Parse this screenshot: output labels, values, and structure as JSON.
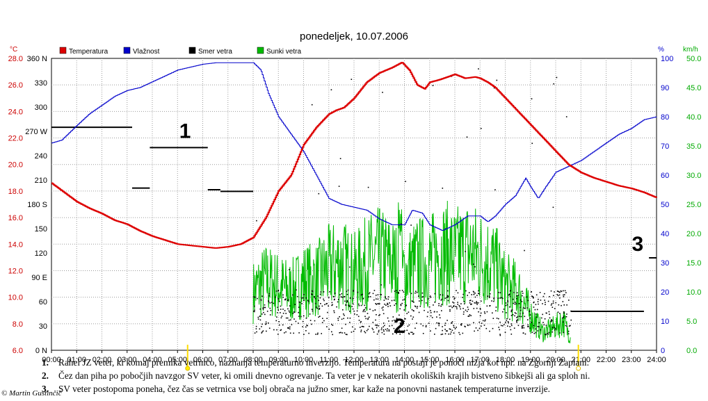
{
  "chart_data": {
    "type": "line",
    "title": "ponedeljek, 10.07.2006",
    "axes": {
      "temperature": {
        "unit": "°C",
        "min": 6,
        "max": 28,
        "ticks": [
          "6.0",
          "8.0",
          "10.0",
          "12.0",
          "14.0",
          "16.0",
          "18.0",
          "20.0",
          "22.0",
          "24.0",
          "26.0",
          "28.0"
        ]
      },
      "direction": {
        "min": 0,
        "max": 360,
        "ticks": [
          "0 N",
          "30",
          "60",
          "90 E",
          "120",
          "150",
          "180 S",
          "210",
          "240",
          "270 W",
          "300",
          "330",
          "360 N"
        ]
      },
      "humidity": {
        "unit": "%",
        "min": 0,
        "max": 100,
        "ticks": [
          "0",
          "10",
          "20",
          "30",
          "40",
          "50",
          "60",
          "70",
          "80",
          "90",
          "100"
        ]
      },
      "wind": {
        "unit": "km/h",
        "min": 0,
        "max": 50,
        "ticks": [
          "0.0",
          "5.0",
          "10.0",
          "15.0",
          "20.0",
          "25.0",
          "30.0",
          "35.0",
          "40.0",
          "45.0",
          "50.0"
        ]
      }
    },
    "x_ticks": [
      "00:00",
      "01:00",
      "02:00",
      "03:00",
      "04:00",
      "05:00",
      "06:00",
      "07:00",
      "08:00",
      "09:00",
      "10:00",
      "11:00",
      "12:00",
      "13:00",
      "14:00",
      "15:00",
      "16:00",
      "17:00",
      "18:00",
      "19:00",
      "20:00",
      "21:00",
      "22:00",
      "23:00",
      "24:00"
    ],
    "sunrise_hours": 5.4,
    "sunset_hours": 20.9,
    "legend": [
      {
        "key": "temperature",
        "label": "Temperatura",
        "color": "#dd0000"
      },
      {
        "key": "humidity",
        "label": "Vlažnost",
        "color": "#0000cc"
      },
      {
        "key": "direction",
        "label": "Smer vetra",
        "color": "#000000"
      },
      {
        "key": "gusts",
        "label": "Sunki vetra",
        "color": "#00bb00"
      }
    ],
    "series": [
      {
        "name": "Temperatura",
        "axis": "temperature",
        "x": [
          0,
          0.5,
          1,
          1.5,
          2,
          2.5,
          3,
          3.5,
          4,
          4.5,
          5,
          5.5,
          6,
          6.5,
          7,
          7.5,
          8,
          8.5,
          9,
          9.5,
          10,
          10.5,
          11,
          11.3,
          11.6,
          12,
          12.5,
          13,
          13.5,
          13.9,
          14.2,
          14.5,
          14.8,
          15,
          15.4,
          15.7,
          16,
          16.4,
          16.8,
          17,
          17.3,
          17.6,
          18,
          18.5,
          19,
          19.5,
          20,
          20.5,
          21,
          21.5,
          22,
          22.5,
          23,
          23.5,
          24
        ],
        "values": [
          18.6,
          17.9,
          17.2,
          16.7,
          16.3,
          15.8,
          15.5,
          15.0,
          14.6,
          14.3,
          14.0,
          13.9,
          13.8,
          13.7,
          13.8,
          14.0,
          14.5,
          16.0,
          18.0,
          19.2,
          21.5,
          22.8,
          23.8,
          24.1,
          24.3,
          25.0,
          26.2,
          26.9,
          27.3,
          27.7,
          27.1,
          26.0,
          25.7,
          26.2,
          26.4,
          26.6,
          26.8,
          26.5,
          26.6,
          26.5,
          26.2,
          25.8,
          25.0,
          24.0,
          23.0,
          22.0,
          21.0,
          20.0,
          19.4,
          19.0,
          18.7,
          18.4,
          18.2,
          17.9,
          17.5
        ]
      },
      {
        "name": "Vlažnost",
        "axis": "humidity",
        "x": [
          0,
          0.4,
          1,
          1.5,
          2,
          2.5,
          3,
          3.5,
          4,
          4.5,
          5,
          5.5,
          6,
          6.5,
          7,
          7.5,
          8,
          8.3,
          8.6,
          9,
          9.5,
          10,
          10.5,
          11,
          11.5,
          12,
          12.5,
          13,
          13.5,
          14,
          14.3,
          14.7,
          15,
          15.5,
          16,
          16.5,
          17,
          17.3,
          17.6,
          18,
          18.4,
          18.8,
          19,
          19.3,
          19.6,
          20,
          20.5,
          21,
          21.5,
          22,
          22.5,
          23,
          23.5,
          24
        ],
        "values": [
          71,
          72,
          77,
          81,
          84,
          87,
          89,
          90,
          92,
          94,
          96,
          97,
          98,
          98.5,
          98.5,
          98.5,
          98.5,
          96,
          88,
          80,
          74,
          68,
          60,
          52,
          50,
          49,
          48,
          45,
          43,
          43,
          48,
          47,
          43,
          41,
          43,
          46,
          46,
          44,
          46,
          50,
          53,
          59,
          56,
          52,
          56,
          61,
          63,
          65,
          68,
          71,
          74,
          76,
          79,
          80
        ]
      },
      {
        "name": "Smer vetra",
        "axis": "direction",
        "type": "scatter",
        "night_segments": [
          {
            "x": [
              0,
              3.2
            ],
            "value": 275
          },
          {
            "x": [
              3.2,
              3.9
            ],
            "value": 200
          },
          {
            "x": [
              3.9,
              6.2
            ],
            "value": 250
          },
          {
            "x": [
              6.2,
              6.7
            ],
            "value": 198
          },
          {
            "x": [
              6.7,
              8.0
            ],
            "value": 196
          },
          {
            "x": [
              20.6,
              23.5
            ],
            "value": 48
          },
          {
            "x": [
              23.7,
              24
            ],
            "value": 114
          }
        ],
        "day_scatter_range": {
          "x": [
            8,
            20.6
          ],
          "y": [
            20,
            75
          ]
        }
      },
      {
        "name": "Sunki vetra",
        "axis": "wind",
        "x": [
          8,
          8.5,
          9,
          9.5,
          10,
          10.5,
          11,
          11.5,
          12,
          12.5,
          13,
          13.5,
          14,
          14.5,
          15,
          15.5,
          16,
          16.5,
          17,
          17.5,
          18,
          18.5,
          19,
          19.5,
          20,
          20.3,
          20.6
        ],
        "values": [
          10,
          12,
          11,
          10,
          12,
          12,
          14,
          15,
          13,
          15,
          16,
          15,
          13,
          15,
          15,
          17,
          16,
          17,
          16,
          15,
          11,
          10,
          6,
          3,
          4,
          5,
          2
        ],
        "peak_range": [
          20,
          26
        ]
      }
    ],
    "annotations": [
      {
        "label": "1",
        "hour": 5.3,
        "temperature": 22.0
      },
      {
        "label": "2",
        "hour": 13.8,
        "temperature": 7.3
      },
      {
        "label": "3",
        "hour": 23.25,
        "temperature": 13.5
      }
    ]
  },
  "notes": [
    {
      "num": "1.",
      "text": "Rahel JZ veter, ki komaj premika vetrnico, naznanja temperaturno inverzijo. Temperatura na postaji je ponoči nižja kot npr. na Zgornji Zaplani."
    },
    {
      "num": "2.",
      "text": "Čez dan piha po pobočjih navzgor SV veter, ki omili dnevno ogrevanje. Ta veter je v nekaterih okoliških krajih bistveno šibkejši ali ga sploh ni."
    },
    {
      "num": "3.",
      "text": "SV veter postopoma poneha, čez čas se vetrnica vse bolj obrača na južno smer, kar kaže na ponovni nastanek temperaturne inverzije."
    }
  ],
  "credit": "© Martin Gustinčič"
}
